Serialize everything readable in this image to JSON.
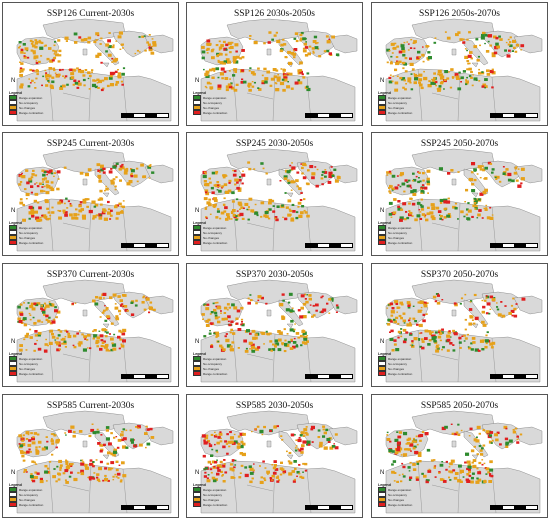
{
  "legend": {
    "title": "Legend",
    "items": [
      {
        "label": "Range expansion",
        "color": "#2e8b2e"
      },
      {
        "label": "No occupancy",
        "color": "#ffffff"
      },
      {
        "label": "No changes",
        "color": "#e6a11a"
      },
      {
        "label": "Range contraction",
        "color": "#e01f1f"
      }
    ]
  },
  "colors": {
    "land": "#d9d9d9",
    "sea": "#ffffff",
    "expansion": "#2e8b2e",
    "stable": "#e6a11a",
    "contraction": "#e01f1f"
  },
  "panels": [
    {
      "title": "SSP126 Current-2030s"
    },
    {
      "title": "SSP126 2030s-2050s"
    },
    {
      "title": "SSP126 2050s-2070s"
    },
    {
      "title": "SSP245 Current-2030s"
    },
    {
      "title": "SSP245 2030-2050s"
    },
    {
      "title": "SSP245 2050-2070s"
    },
    {
      "title": "SSP370 Current-2030s"
    },
    {
      "title": "SSP370 2030-2050s"
    },
    {
      "title": "SSP370 2050-2070s"
    },
    {
      "title": "SSP585 Current-2030s"
    },
    {
      "title": "SSP585 2030-2050s"
    },
    {
      "title": "SSP585 2050-2070s"
    }
  ],
  "north_arrow": "N"
}
